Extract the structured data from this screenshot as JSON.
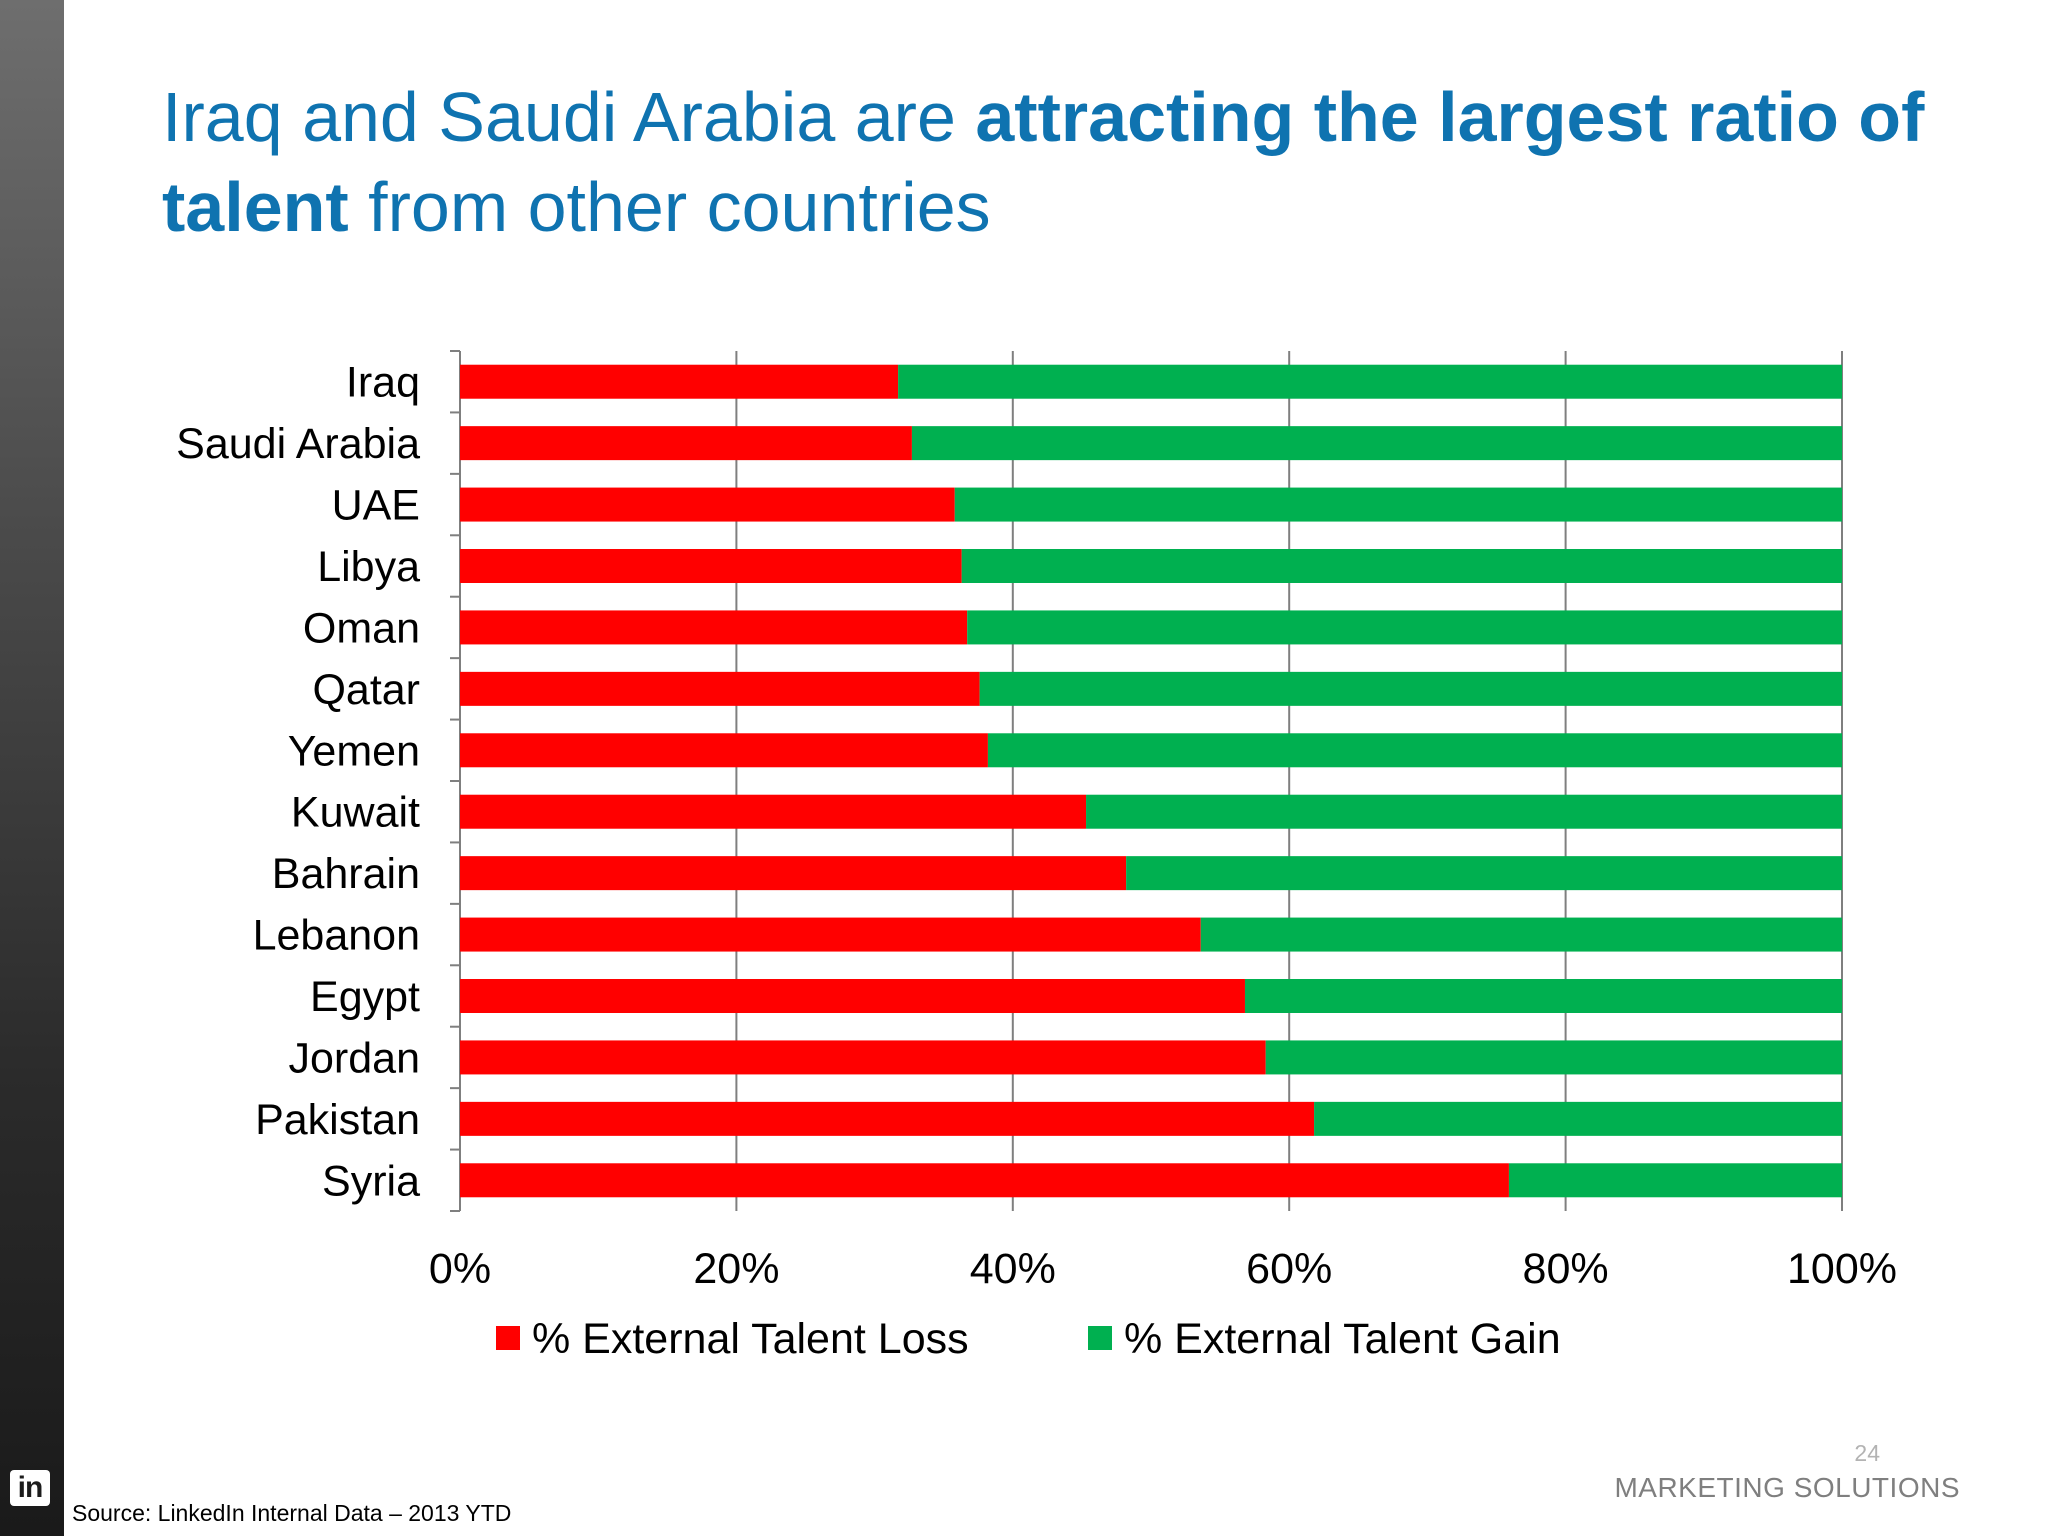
{
  "slide": {
    "title_part1": "Iraq and Saudi Arabia are ",
    "title_bold": "attracting the largest ratio of talent",
    "title_part2": " from other countries",
    "source": "Source:  LinkedIn Internal Data – 2013 YTD",
    "page_number": "24",
    "footer_brand": "MARKETING SOLUTIONS",
    "logo_text": "in"
  },
  "colors": {
    "title": "#0f73b0",
    "loss": "#ff0000",
    "gain": "#00b050",
    "grid": "#7f7f7f"
  },
  "chart_data": {
    "type": "bar",
    "orientation": "horizontal",
    "stacked": true,
    "categories": [
      "Iraq",
      "Saudi Arabia",
      "UAE",
      "Libya",
      "Oman",
      "Qatar",
      "Yemen",
      "Kuwait",
      "Bahrain",
      "Lebanon",
      "Egypt",
      "Jordan",
      "Pakistan",
      "Syria"
    ],
    "series": [
      {
        "name": "% External Talent Loss",
        "values": [
          31.7,
          32.7,
          35.8,
          36.3,
          36.7,
          37.6,
          38.2,
          45.3,
          48.2,
          53.6,
          56.8,
          58.3,
          61.8,
          75.9
        ]
      },
      {
        "name": "% External Talent Gain",
        "values": [
          68.3,
          67.3,
          64.2,
          63.7,
          63.3,
          62.4,
          61.8,
          54.7,
          51.8,
          46.4,
          43.2,
          41.7,
          38.2,
          24.1
        ]
      }
    ],
    "xlim": [
      0,
      100
    ],
    "xticks": [
      "0%",
      "20%",
      "40%",
      "60%",
      "80%",
      "100%"
    ],
    "grid": true,
    "legend_position": "bottom"
  }
}
